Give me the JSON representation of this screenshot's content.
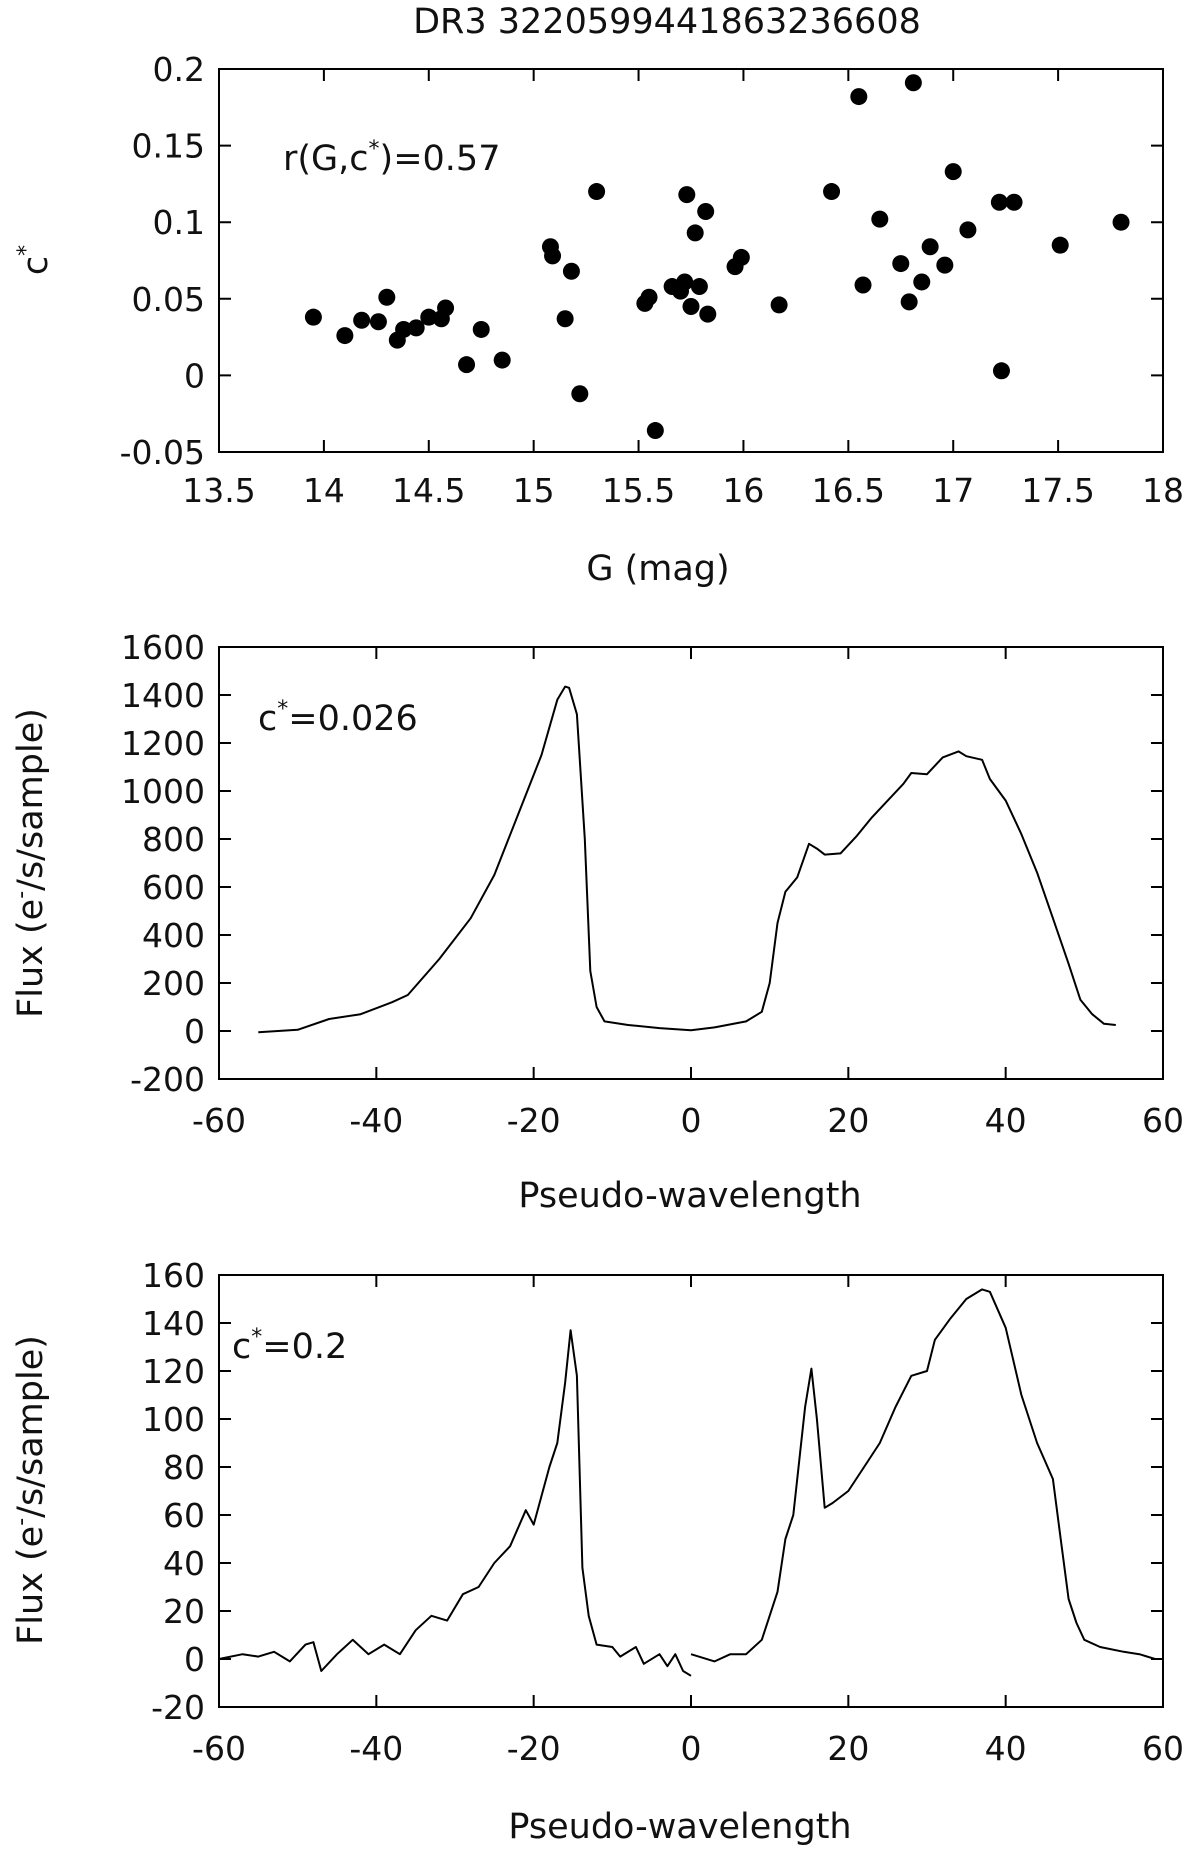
{
  "chart_data": [
    {
      "type": "scatter",
      "title": "DR3 3220599441863236608",
      "xlabel": "G (mag)",
      "ylabel": {
        "base": "c",
        "sup": "*"
      },
      "annotation": {
        "pre": "r(G,c",
        "sup": "*",
        "post": ")=0.57"
      },
      "xlim": [
        13.5,
        18
      ],
      "ylim": [
        -0.05,
        0.2
      ],
      "xticks": [
        "13.5",
        "14",
        "14.5",
        "15",
        "15.5",
        "16",
        "16.5",
        "17",
        "17.5",
        "18"
      ],
      "yticks": [
        "-0.05",
        "0",
        "0.05",
        "0.1",
        "0.15",
        "0.2"
      ],
      "points": [
        [
          13.95,
          0.038
        ],
        [
          14.1,
          0.026
        ],
        [
          14.18,
          0.036
        ],
        [
          14.26,
          0.035
        ],
        [
          14.3,
          0.051
        ],
        [
          14.35,
          0.023
        ],
        [
          14.38,
          0.03
        ],
        [
          14.44,
          0.031
        ],
        [
          14.5,
          0.038
        ],
        [
          14.56,
          0.037
        ],
        [
          14.58,
          0.044
        ],
        [
          14.68,
          0.007
        ],
        [
          14.75,
          0.03
        ],
        [
          14.85,
          0.01
        ],
        [
          15.08,
          0.084
        ],
        [
          15.09,
          0.078
        ],
        [
          15.15,
          0.037
        ],
        [
          15.18,
          0.068
        ],
        [
          15.22,
          -0.012
        ],
        [
          15.3,
          0.12
        ],
        [
          15.53,
          0.047
        ],
        [
          15.55,
          0.051
        ],
        [
          15.58,
          -0.036
        ],
        [
          15.66,
          0.058
        ],
        [
          15.7,
          0.055
        ],
        [
          15.72,
          0.061
        ],
        [
          15.73,
          0.118
        ],
        [
          15.75,
          0.045
        ],
        [
          15.77,
          0.093
        ],
        [
          15.79,
          0.058
        ],
        [
          15.82,
          0.107
        ],
        [
          15.83,
          0.04
        ],
        [
          15.96,
          0.071
        ],
        [
          15.99,
          0.077
        ],
        [
          16.17,
          0.046
        ],
        [
          16.42,
          0.12
        ],
        [
          16.55,
          0.182
        ],
        [
          16.57,
          0.059
        ],
        [
          16.65,
          0.102
        ],
        [
          16.75,
          0.073
        ],
        [
          16.79,
          0.048
        ],
        [
          16.81,
          0.191
        ],
        [
          16.85,
          0.061
        ],
        [
          16.89,
          0.084
        ],
        [
          16.96,
          0.072
        ],
        [
          17.0,
          0.133
        ],
        [
          17.07,
          0.095
        ],
        [
          17.22,
          0.113
        ],
        [
          17.23,
          0.003
        ],
        [
          17.29,
          0.113
        ],
        [
          17.51,
          0.085
        ],
        [
          17.8,
          0.1
        ]
      ]
    },
    {
      "type": "line",
      "xlabel": "Pseudo-wavelength",
      "ylabel": {
        "pre": "Flux (e",
        "sup": "-",
        "post": "/s/sample)"
      },
      "annotation": {
        "pre": "c",
        "sup": "*",
        "post": "=0.026"
      },
      "xlim": [
        -60,
        60
      ],
      "ylim": [
        -200,
        1600
      ],
      "xticks": [
        "-60",
        "-40",
        "-20",
        "0",
        "20",
        "40",
        "60"
      ],
      "yticks": [
        "-200",
        "0",
        "200",
        "400",
        "600",
        "800",
        "1000",
        "1200",
        "1400",
        "1600"
      ],
      "series": [
        {
          "points": [
            [
              -55,
              -5
            ],
            [
              -50,
              5
            ],
            [
              -46,
              50
            ],
            [
              -42,
              70
            ],
            [
              -38,
              120
            ],
            [
              -36,
              150
            ],
            [
              -32,
              300
            ],
            [
              -28,
              470
            ],
            [
              -25,
              650
            ],
            [
              -22,
              900
            ],
            [
              -19,
              1150
            ],
            [
              -17,
              1380
            ],
            [
              -16,
              1435
            ],
            [
              -15.5,
              1430
            ],
            [
              -14.5,
              1320
            ],
            [
              -13.5,
              800
            ],
            [
              -12.8,
              250
            ],
            [
              -12,
              100
            ],
            [
              -11,
              40
            ],
            [
              -8,
              25
            ],
            [
              -4,
              12
            ],
            [
              0,
              3
            ],
            [
              3,
              15
            ],
            [
              7,
              40
            ],
            [
              9,
              80
            ],
            [
              10,
              200
            ],
            [
              11,
              450
            ],
            [
              12,
              580
            ],
            [
              13.5,
              640
            ],
            [
              15,
              780
            ],
            [
              16,
              760
            ],
            [
              17,
              735
            ],
            [
              19,
              740
            ],
            [
              21,
              810
            ],
            [
              23,
              890
            ],
            [
              25,
              960
            ],
            [
              27,
              1030
            ],
            [
              28,
              1075
            ],
            [
              30,
              1070
            ],
            [
              32,
              1140
            ],
            [
              34,
              1165
            ],
            [
              35,
              1145
            ],
            [
              37,
              1130
            ],
            [
              38,
              1050
            ],
            [
              40,
              960
            ],
            [
              42,
              820
            ],
            [
              44,
              660
            ],
            [
              46,
              470
            ],
            [
              48,
              280
            ],
            [
              49.5,
              130
            ],
            [
              51,
              70
            ],
            [
              52.5,
              30
            ],
            [
              54,
              25
            ]
          ]
        }
      ]
    },
    {
      "type": "line",
      "xlabel": "Pseudo-wavelength",
      "ylabel": {
        "pre": "Flux (e",
        "sup": "-",
        "post": "/s/sample)"
      },
      "annotation": {
        "pre": "c",
        "sup": "*",
        "post": "=0.2"
      },
      "xlim": [
        -60,
        60
      ],
      "ylim": [
        -20,
        160
      ],
      "xticks": [
        "-60",
        "-40",
        "-20",
        "0",
        "20",
        "40",
        "60"
      ],
      "yticks": [
        "-20",
        "0",
        "20",
        "40",
        "60",
        "80",
        "100",
        "120",
        "140",
        "160"
      ],
      "series": [
        {
          "points": [
            [
              -60,
              0
            ],
            [
              -57,
              2
            ],
            [
              -55,
              1
            ],
            [
              -53,
              3
            ],
            [
              -51,
              -1
            ],
            [
              -49,
              6
            ],
            [
              -48,
              7
            ],
            [
              -47,
              -5
            ],
            [
              -45,
              2
            ],
            [
              -43,
              8
            ],
            [
              -41,
              2
            ],
            [
              -39,
              6
            ],
            [
              -37,
              2
            ],
            [
              -35,
              12
            ],
            [
              -33,
              18
            ],
            [
              -31,
              16
            ],
            [
              -29,
              27
            ],
            [
              -27,
              30
            ],
            [
              -25,
              40
            ],
            [
              -23,
              47
            ],
            [
              -21,
              62
            ],
            [
              -20,
              56
            ],
            [
              -18,
              80
            ],
            [
              -17,
              90
            ],
            [
              -16,
              115
            ],
            [
              -15.3,
              137
            ],
            [
              -14.5,
              118
            ],
            [
              -13.8,
              38
            ],
            [
              -13,
              18
            ],
            [
              -12,
              6
            ],
            [
              -10,
              5
            ],
            [
              -9,
              1
            ],
            [
              -7,
              5
            ],
            [
              -6,
              -2
            ],
            [
              -4,
              2
            ],
            [
              -3,
              -3
            ],
            [
              -2,
              2
            ],
            [
              -1,
              -5
            ],
            [
              0,
              -7
            ]
          ]
        },
        {
          "points": [
            [
              0,
              2
            ],
            [
              3,
              -1
            ],
            [
              5,
              2
            ],
            [
              7,
              2
            ],
            [
              9,
              8
            ],
            [
              11,
              28
            ],
            [
              12,
              50
            ],
            [
              13,
              60
            ],
            [
              14.5,
              105
            ],
            [
              15.3,
              121
            ],
            [
              16,
              100
            ],
            [
              17,
              63
            ],
            [
              18,
              65
            ],
            [
              20,
              70
            ],
            [
              22,
              80
            ],
            [
              24,
              90
            ],
            [
              26,
              105
            ],
            [
              28,
              118
            ],
            [
              30,
              120
            ],
            [
              31,
              133
            ],
            [
              33,
              142
            ],
            [
              35,
              150
            ],
            [
              37,
              154
            ],
            [
              38,
              153
            ],
            [
              40,
              138
            ],
            [
              42,
              110
            ],
            [
              44,
              90
            ],
            [
              46,
              75
            ],
            [
              47,
              50
            ],
            [
              48,
              25
            ],
            [
              49,
              15
            ],
            [
              50,
              8
            ],
            [
              52,
              5
            ],
            [
              55,
              3
            ],
            [
              57,
              2
            ],
            [
              59,
              0
            ]
          ]
        }
      ]
    }
  ]
}
